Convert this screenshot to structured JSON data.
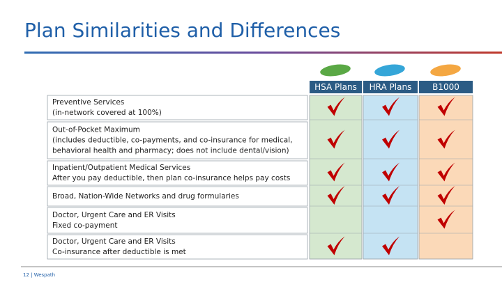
{
  "title": "Plan Similarities and Differences",
  "columns": [
    "HSA Plans",
    "HRA Plans",
    "B1000"
  ],
  "rows": [
    {
      "lines": [
        "Preventive Services",
        "(in-network covered at 100%)"
      ],
      "checks": [
        true,
        true,
        true
      ]
    },
    {
      "lines": [
        "Out-of-Pocket Maximum",
        "(includes deductible, co-payments, and co-insurance for medical,",
        "behavioral health and pharmacy; does not include dental/vision)"
      ],
      "checks": [
        true,
        true,
        true
      ]
    },
    {
      "lines": [
        "Inpatient/Outpatient Medical Services",
        "After you pay deductible, then plan co-insurance helps pay costs"
      ],
      "checks": [
        true,
        true,
        true
      ]
    },
    {
      "lines": [
        "Broad, Nation-Wide Networks and drug formularies"
      ],
      "checks": [
        true,
        true,
        true
      ]
    },
    {
      "lines": [
        "Doctor, Urgent Care and ER Visits",
        "Fixed co-payment"
      ],
      "checks": [
        false,
        false,
        true
      ]
    },
    {
      "lines": [
        "Doctor, Urgent Care and ER Visits",
        "Co-insurance after deductible is met"
      ],
      "checks": [
        true,
        true,
        false
      ]
    }
  ],
  "footer": "12 | Wespath"
}
